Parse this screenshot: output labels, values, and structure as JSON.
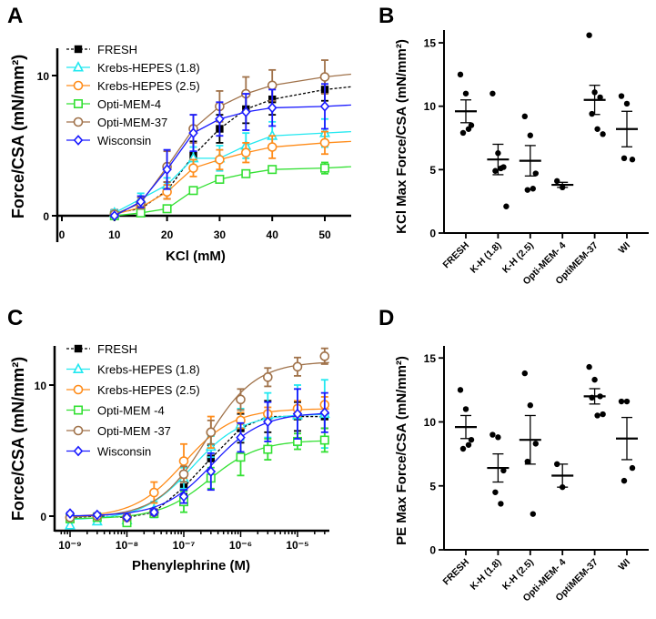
{
  "colors": {
    "FRESH": "#000000",
    "KH18": "#22e8f0",
    "KH25": "#ff8c1a",
    "OPTI4": "#33e033",
    "OPTI37": "#a0724a",
    "WISC": "#1a1aff"
  },
  "chart_data": [
    {
      "id": "A",
      "panel_label": "A",
      "type": "line",
      "title": "",
      "xlabel": "KCl (mM)",
      "ylabel": "Force/CSA (mN/mm²)",
      "xlim": [
        0,
        55
      ],
      "ylim": [
        0,
        12
      ],
      "x": [
        10,
        15,
        20,
        25,
        30,
        35,
        40,
        50
      ],
      "xticks": [
        0,
        10,
        20,
        30,
        40,
        50
      ],
      "xtick_labels": [
        "0",
        "10",
        "20",
        "30",
        "40",
        "50"
      ],
      "yticks": [
        0,
        10
      ],
      "ytick_labels": [
        "0",
        "10"
      ],
      "legend_position": "top-left",
      "series": [
        {
          "key": "FRESH",
          "name": "FRESH",
          "marker": "square-filled",
          "dashed": true,
          "values": [
            0.2,
            0.5,
            1.8,
            4.3,
            6.2,
            7.6,
            8.3,
            9.0
          ],
          "sem": [
            0.2,
            0.3,
            0.6,
            1.0,
            1.0,
            1.0,
            1.1,
            0.8
          ],
          "fit_end": 9.2
        },
        {
          "key": "KH18",
          "name": "Krebs-HEPES (1.8)",
          "marker": "triangle",
          "values": [
            0.2,
            1.2,
            2.2,
            4.1,
            4.1,
            5.0,
            5.7,
            5.9
          ],
          "sem": [
            0.2,
            0.4,
            0.5,
            0.8,
            0.9,
            0.9,
            1.0,
            1.0
          ],
          "fit_end": 6.0
        },
        {
          "key": "KH25",
          "name": "Krebs-HEPES (2.5)",
          "marker": "circle",
          "values": [
            0.1,
            0.6,
            1.7,
            3.4,
            4.0,
            4.5,
            4.9,
            5.2
          ],
          "sem": [
            0.1,
            0.3,
            0.5,
            0.6,
            0.7,
            0.7,
            0.8,
            0.8
          ],
          "fit_end": 5.3
        },
        {
          "key": "OPTI4",
          "name": "Opti-MEM-4",
          "marker": "square",
          "values": [
            0.0,
            0.2,
            0.5,
            1.8,
            2.6,
            3.0,
            3.3,
            3.4
          ],
          "sem": [
            0.05,
            0.1,
            0.2,
            0.2,
            0.2,
            0.2,
            0.2,
            0.4
          ],
          "fit_end": 3.5
        },
        {
          "key": "OPTI37",
          "name": "Opti-MEM-37",
          "marker": "circle",
          "values": [
            0.1,
            0.9,
            3.5,
            6.2,
            7.8,
            8.7,
            9.3,
            9.9
          ],
          "sem": [
            0.1,
            0.4,
            1.1,
            1.0,
            1.1,
            1.2,
            1.1,
            1.2
          ],
          "fit_end": 10.1
        },
        {
          "key": "WISC",
          "name": "Wisconsin",
          "marker": "diamond",
          "values": [
            0.0,
            1.0,
            3.3,
            5.9,
            6.9,
            7.4,
            7.7,
            7.8
          ],
          "sem": [
            0.1,
            0.4,
            1.4,
            1.3,
            1.2,
            1.3,
            1.3,
            1.6
          ],
          "fit_end": 7.9
        }
      ]
    },
    {
      "id": "B",
      "panel_label": "B",
      "type": "scatter",
      "title": "",
      "xlabel": "",
      "ylabel": "KCl Max Force/CSA (mN/mm²)",
      "ylim": [
        0,
        16
      ],
      "yticks": [
        0,
        5,
        10,
        15
      ],
      "ytick_labels": [
        "0",
        "5",
        "10",
        "15"
      ],
      "categories": [
        "FRESH",
        "K-H (1.8)",
        "K-H (2.5)",
        "Opti-MEM- 4",
        "OptiMEM-37",
        "WI"
      ],
      "points": [
        [
          12.5,
          11.0,
          8.5,
          7.9,
          8.2
        ],
        [
          11.0,
          6.3,
          5.2,
          4.9,
          5.1,
          2.1
        ],
        [
          9.2,
          7.7,
          4.7,
          3.4,
          3.5
        ],
        [
          4.1,
          3.6
        ],
        [
          15.6,
          11.1,
          10.7,
          9.4,
          8.2,
          7.8
        ],
        [
          10.8,
          10.2,
          5.8,
          5.9
        ]
      ],
      "mean": [
        9.6,
        5.8,
        5.7,
        3.8,
        10.5,
        8.2
      ],
      "sem": [
        0.9,
        1.2,
        1.2,
        0.2,
        1.15,
        1.4
      ]
    },
    {
      "id": "C",
      "panel_label": "C",
      "type": "line",
      "title": "",
      "xlabel": "Phenylephrine (M)",
      "ylabel": "Force/CSA (mN/mm²)",
      "xscale": "log",
      "xlim": [
        3e-10,
        3.6e-05
      ],
      "ylim": [
        -1,
        12.5
      ],
      "x": [
        1e-09,
        3e-09,
        1e-08,
        3e-08,
        1e-07,
        3e-07,
        1e-06,
        3e-06,
        1e-05,
        3e-05
      ],
      "xticks_log10": [
        -9,
        -8,
        -7,
        -6,
        -5
      ],
      "xtick_labels": [
        "10⁻⁹",
        "10⁻⁸",
        "10⁻⁷",
        "10⁻⁶",
        "10⁻⁵"
      ],
      "yticks": [
        0,
        10
      ],
      "ytick_labels": [
        "0",
        "10"
      ],
      "legend_position": "top-left",
      "series": [
        {
          "key": "FRESH",
          "name": "FRESH",
          "marker": "square-filled",
          "dashed": true,
          "values": [
            -0.1,
            0.0,
            -0.1,
            0.3,
            2.2,
            4.4,
            6.7,
            7.6,
            7.6,
            7.6
          ],
          "sem": [
            0.1,
            0.1,
            0.1,
            0.2,
            0.5,
            1.0,
            1.1,
            1.2,
            1.1,
            0.9
          ]
        },
        {
          "key": "KH18",
          "name": "Krebs-HEPES (1.8)",
          "marker": "triangle",
          "values": [
            -0.7,
            -0.4,
            -0.3,
            0.5,
            2.9,
            5.3,
            7.0,
            7.7,
            7.7,
            7.8
          ],
          "sem": [
            0.2,
            0.1,
            0.2,
            0.6,
            0.8,
            0.8,
            1.2,
            1.7,
            2.3,
            2.6
          ],
          "fit": {
            "bottom": -0.3,
            "top": 7.8,
            "logEC50": -6.85,
            "hill": 1.0
          }
        },
        {
          "key": "KH25",
          "name": "Krebs-HEPES (2.5)",
          "marker": "circle",
          "values": [
            -0.1,
            0.0,
            -0.1,
            1.8,
            4.2,
            6.4,
            7.3,
            7.8,
            8.2,
            8.5
          ],
          "sem": [
            0.1,
            0.1,
            0.1,
            0.8,
            1.3,
            1.2,
            0.6,
            0.5,
            0.6,
            0.6
          ],
          "fit": {
            "bottom": -0.1,
            "top": 8.2,
            "logEC50": -7.0,
            "hill": 1.0
          }
        },
        {
          "key": "OPTI4",
          "name": "Opti-MEM -4",
          "marker": "square",
          "values": [
            -0.2,
            -0.1,
            -0.5,
            0.2,
            1.1,
            2.9,
            4.5,
            5.1,
            5.7,
            5.8
          ],
          "sem": [
            0.1,
            0.1,
            0.2,
            0.2,
            0.8,
            0.8,
            1.4,
            0.8,
            0.6,
            0.9
          ],
          "fit": {
            "bottom": -0.2,
            "top": 5.8,
            "logEC50": -6.55,
            "hill": 1.0
          }
        },
        {
          "key": "OPTI37",
          "name": "Opti-MEM -37",
          "marker": "circle",
          "values": [
            -0.1,
            0.0,
            -0.1,
            0.3,
            3.2,
            6.4,
            8.9,
            10.6,
            11.4,
            12.2
          ],
          "sem": [
            0.1,
            0.1,
            0.1,
            0.2,
            0.6,
            0.9,
            0.8,
            0.7,
            0.7,
            0.6
          ],
          "fit": {
            "bottom": -0.1,
            "top": 11.8,
            "logEC50": -6.6,
            "hill": 1.0
          }
        },
        {
          "key": "WISC",
          "name": "Wisconsin",
          "marker": "diamond",
          "values": [
            0.2,
            0.1,
            -0.1,
            0.3,
            1.5,
            3.4,
            6.0,
            7.2,
            7.8,
            7.9
          ],
          "sem": [
            0.1,
            0.1,
            0.1,
            0.2,
            0.5,
            1.4,
            1.1,
            1.5,
            1.9,
            1.5
          ],
          "fit": {
            "bottom": 0.0,
            "top": 7.9,
            "logEC50": -6.5,
            "hill": 1.0
          }
        }
      ]
    },
    {
      "id": "D",
      "panel_label": "D",
      "type": "scatter",
      "title": "",
      "xlabel": "",
      "ylabel": "PE Max Force/CSA (mN/mm²)",
      "ylim": [
        0,
        16
      ],
      "yticks": [
        0,
        5,
        10,
        15
      ],
      "ytick_labels": [
        "0",
        "5",
        "10",
        "15"
      ],
      "categories": [
        "FRESH",
        "K-H (1.8)",
        "K-H (2.5)",
        "Opti-MEM- 4",
        "OptiMEM-37",
        "WI"
      ],
      "points": [
        [
          12.5,
          11.0,
          8.6,
          7.9,
          8.2
        ],
        [
          9.0,
          8.8,
          6.2,
          4.5,
          3.6
        ],
        [
          13.8,
          11.3,
          8.3,
          6.9,
          2.8
        ],
        [
          6.7,
          4.9
        ],
        [
          14.3,
          13.3,
          12.0,
          11.9,
          10.5,
          10.6
        ],
        [
          11.6,
          11.6,
          6.4,
          5.4
        ]
      ],
      "mean": [
        9.6,
        6.4,
        8.6,
        5.8,
        12.0,
        8.7
      ],
      "sem": [
        0.9,
        1.1,
        1.9,
        0.9,
        0.6,
        1.65
      ]
    }
  ]
}
